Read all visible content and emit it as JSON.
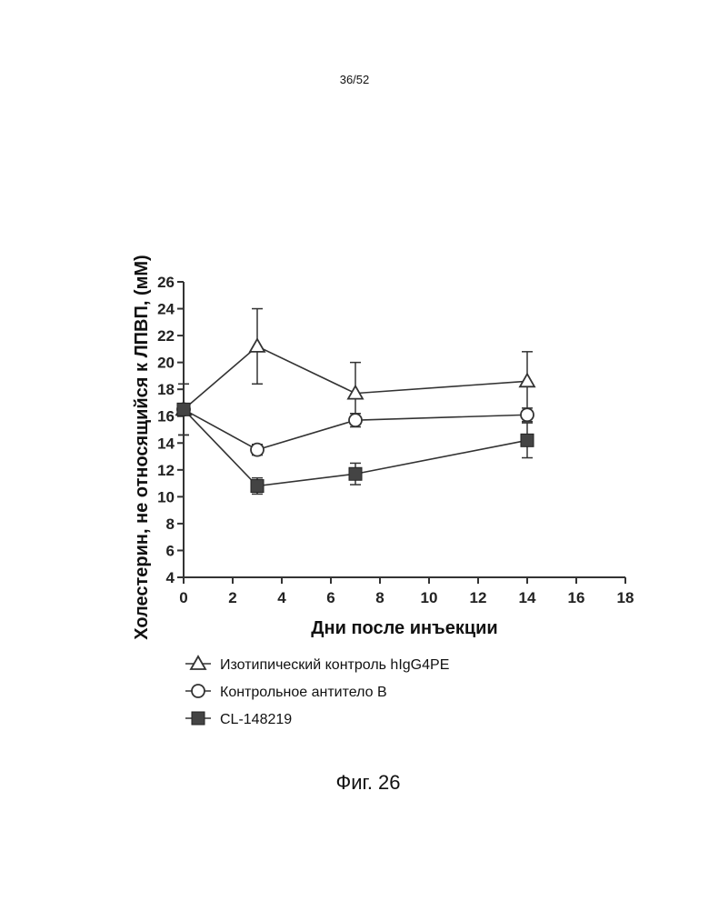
{
  "page": {
    "page_number": "36/52",
    "figure_caption": "Фиг. 26"
  },
  "chart_data": {
    "type": "line",
    "xlabel": "Дни после инъекции",
    "ylabel": "Холестерин, не относящийся к ЛПВП, (мМ)",
    "xlim": [
      0,
      18
    ],
    "ylim": [
      4,
      26
    ],
    "x_ticks": [
      0,
      2,
      4,
      6,
      8,
      10,
      12,
      14,
      16,
      18
    ],
    "y_ticks": [
      4,
      6,
      8,
      10,
      12,
      14,
      16,
      18,
      20,
      22,
      24,
      26
    ],
    "grid": false,
    "legend_position": "below",
    "series": [
      {
        "name": "Изотипический контроль hIgG4PE",
        "marker": "open-triangle",
        "x": [
          0,
          3,
          7,
          14
        ],
        "y": [
          16.5,
          21.2,
          17.7,
          18.6
        ],
        "error": [
          1.9,
          2.8,
          2.3,
          2.2
        ]
      },
      {
        "name": "Контрольное антитело B",
        "marker": "open-circle",
        "x": [
          0,
          3,
          7,
          14
        ],
        "y": [
          16.5,
          13.5,
          15.7,
          16.1
        ],
        "error": [
          1.9,
          0.4,
          0.5,
          0.5
        ]
      },
      {
        "name": "CL-148219",
        "marker": "filled-square",
        "x": [
          0,
          3,
          7,
          14
        ],
        "y": [
          16.5,
          10.8,
          11.7,
          14.2
        ],
        "error": [
          1.9,
          0.6,
          0.8,
          1.3
        ]
      }
    ]
  }
}
